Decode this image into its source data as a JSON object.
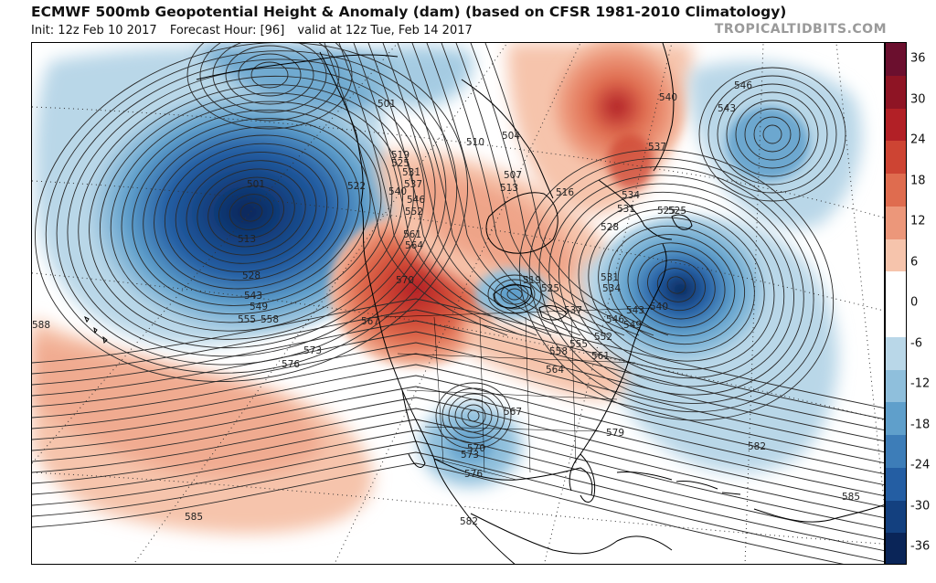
{
  "header": {
    "title": "ECMWF 500mb Geopotential Height & Anomaly (dam) (based on CFSR 1981-2010 Climatology)",
    "init": "Init: 12z Feb 10 2017",
    "forecast_hour": "Forecast Hour: [96]",
    "valid": "valid at 12z Tue, Feb 14 2017",
    "watermark": "TROPICALTIDBITS.COM"
  },
  "colorbar": {
    "tick_labels": [
      "36",
      "30",
      "24",
      "18",
      "12",
      "6",
      "0",
      "-6",
      "-12",
      "-18",
      "-24",
      "-30",
      "-36"
    ],
    "colors": [
      "#6b0f2e",
      "#8e1424",
      "#b22026",
      "#cd4433",
      "#df6c4f",
      "#ec977a",
      "#f6c4ac",
      "#ffffff",
      "#ffffff",
      "#b9d7e8",
      "#8fbfdc",
      "#5f9fcb",
      "#3d7db8",
      "#245ea3",
      "#13407f",
      "#0a2558"
    ]
  },
  "map": {
    "contour_labels": [
      {
        "text": "501"
      },
      {
        "text": "501"
      },
      {
        "text": "510"
      },
      {
        "text": "519"
      },
      {
        "text": "525"
      },
      {
        "text": "531"
      },
      {
        "text": "537"
      },
      {
        "text": "540"
      },
      {
        "text": "546"
      },
      {
        "text": "552"
      },
      {
        "text": "561"
      },
      {
        "text": "564"
      },
      {
        "text": "570"
      },
      {
        "text": "522"
      },
      {
        "text": "513"
      },
      {
        "text": "528"
      },
      {
        "text": "543"
      },
      {
        "text": "549"
      },
      {
        "text": "555"
      },
      {
        "text": "558"
      },
      {
        "text": "588"
      },
      {
        "text": "567"
      },
      {
        "text": "573"
      },
      {
        "text": "576"
      },
      {
        "text": "504"
      },
      {
        "text": "507"
      },
      {
        "text": "513"
      },
      {
        "text": "516"
      },
      {
        "text": "534"
      },
      {
        "text": "531"
      },
      {
        "text": "528"
      },
      {
        "text": "525"
      },
      {
        "text": "519"
      },
      {
        "text": "525"
      },
      {
        "text": "531"
      },
      {
        "text": "534"
      },
      {
        "text": "537"
      },
      {
        "text": "543"
      },
      {
        "text": "546"
      },
      {
        "text": "549"
      },
      {
        "text": "540"
      },
      {
        "text": "552"
      },
      {
        "text": "555"
      },
      {
        "text": "558"
      },
      {
        "text": "561"
      },
      {
        "text": "564"
      },
      {
        "text": "567"
      },
      {
        "text": "570"
      },
      {
        "text": "573"
      },
      {
        "text": "576"
      },
      {
        "text": "579"
      },
      {
        "text": "582"
      },
      {
        "text": "582"
      },
      {
        "text": "585"
      },
      {
        "text": "585"
      },
      {
        "text": "540"
      },
      {
        "text": "537"
      },
      {
        "text": "546"
      },
      {
        "text": "543"
      },
      {
        "text": "525"
      }
    ]
  }
}
